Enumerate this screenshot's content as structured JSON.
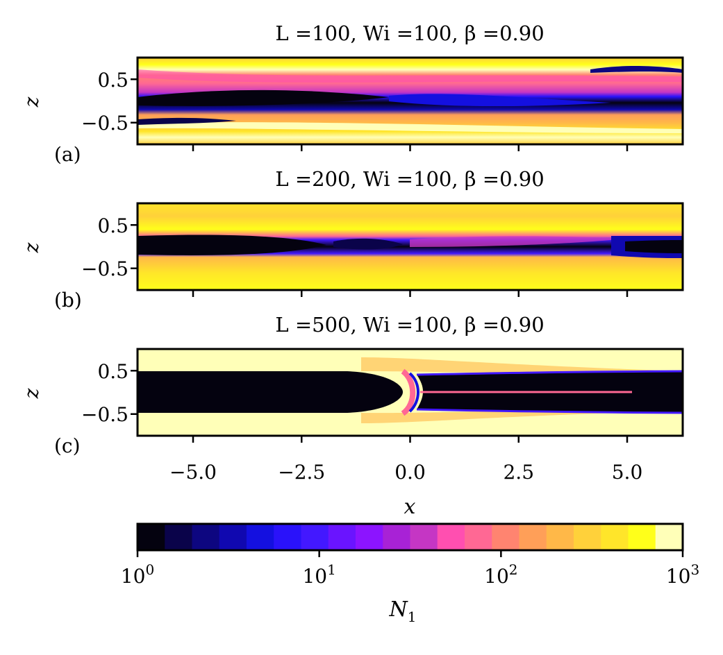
{
  "chart_data": [
    {
      "type": "heatmap",
      "panel_label": "(a)",
      "title": "L =100, Wi =100, β =0.90",
      "xlabel": "",
      "ylabel": "z",
      "xlim": [
        -6.28,
        6.28
      ],
      "ylim": [
        -1.0,
        1.0
      ],
      "x_ticks": [
        -5.0,
        -2.5,
        0.0,
        2.5,
        5.0
      ],
      "y_ticks": [
        0.5,
        -0.5
      ],
      "y_tick_labels": [
        "0.5",
        "−0.5"
      ],
      "bands": [
        {
          "z0": 0.72,
          "z1": 0.95,
          "x0": -6.28,
          "x1": 6.28,
          "value": 800
        },
        {
          "z0": 0.35,
          "z1": 0.72,
          "x0": -6.28,
          "x1": 6.28,
          "value": 120
        },
        {
          "z0": -0.25,
          "z1": 0.35,
          "x0": -6.28,
          "x1": -0.5,
          "value": 5
        },
        {
          "z0": -0.05,
          "z1": 0.15,
          "x0": -5.5,
          "x1": -0.8,
          "value": 1.2
        },
        {
          "z0": -0.2,
          "z1": 0.1,
          "x0": 0.2,
          "x1": 4.5,
          "value": 3
        },
        {
          "z0": -0.6,
          "z1": -0.25,
          "x0": -6.28,
          "x1": 6.28,
          "value": 300
        },
        {
          "z0": -0.95,
          "z1": -0.6,
          "x0": -6.28,
          "x1": 6.28,
          "value": 700
        },
        {
          "z0": 0.55,
          "z1": 0.85,
          "x0": 3.5,
          "x1": 6.28,
          "value": 8
        }
      ]
    },
    {
      "type": "heatmap",
      "panel_label": "(b)",
      "title": "L =200, Wi =100, β =0.90",
      "xlabel": "",
      "ylabel": "z",
      "xlim": [
        -6.28,
        6.28
      ],
      "ylim": [
        -1.0,
        1.0
      ],
      "x_ticks": [
        -5.0,
        -2.5,
        0.0,
        2.5,
        5.0
      ],
      "y_ticks": [
        0.5,
        -0.5
      ],
      "y_tick_labels": [
        "0.5",
        "−0.5"
      ],
      "bands": [
        {
          "z0": 0.25,
          "z1": 1.0,
          "x0": -6.28,
          "x1": 6.28,
          "value": 600
        },
        {
          "z0": -0.25,
          "z1": 0.25,
          "x0": -6.28,
          "x1": -2.0,
          "value": 1.0
        },
        {
          "z0": -0.25,
          "z1": 0.25,
          "x0": -2.0,
          "x1": 0.0,
          "value": 4
        },
        {
          "z0": -0.2,
          "z1": 0.2,
          "x0": 0.0,
          "x1": 4.5,
          "value": 40
        },
        {
          "z0": -0.25,
          "z1": 0.25,
          "x0": 4.5,
          "x1": 6.28,
          "value": 2
        },
        {
          "z0": -1.0,
          "z1": -0.25,
          "x0": -6.28,
          "x1": 6.28,
          "value": 500
        }
      ]
    },
    {
      "type": "heatmap",
      "panel_label": "(c)",
      "title": "L =500, Wi =100, β =0.90",
      "xlabel": "x",
      "ylabel": "z",
      "xlim": [
        -6.28,
        6.28
      ],
      "ylim": [
        -1.0,
        1.0
      ],
      "x_ticks": [
        -5.0,
        -2.5,
        0.0,
        2.5,
        5.0
      ],
      "x_tick_labels": [
        "−5.0",
        "−2.5",
        "0.0",
        "2.5",
        "5.0"
      ],
      "y_ticks": [
        0.5,
        -0.5
      ],
      "y_tick_labels": [
        "0.5",
        "−0.5"
      ],
      "bands": [
        {
          "z0": 0.48,
          "z1": 1.0,
          "x0": -6.28,
          "x1": 6.28,
          "value": 1000
        },
        {
          "z0": -1.0,
          "z1": -0.48,
          "x0": -6.28,
          "x1": 6.28,
          "value": 1000
        },
        {
          "z0": -0.48,
          "z1": 0.48,
          "x0": -6.28,
          "x1": -0.3,
          "value": 1.0
        },
        {
          "z0": -0.48,
          "z1": 0.48,
          "x0": 0.1,
          "x1": 6.28,
          "value": 1.0
        },
        {
          "z0": -0.03,
          "z1": 0.03,
          "x0": 0.3,
          "x1": 5.0,
          "value": 40
        }
      ]
    }
  ],
  "colorbar": {
    "label": "N",
    "label_sub": "1",
    "scale": "log",
    "range": [
      1,
      1000
    ],
    "levels": 20,
    "tick_values": [
      1,
      10,
      100,
      1000
    ],
    "tick_base": [
      "10",
      "10",
      "10",
      "10"
    ],
    "tick_exp": [
      "0",
      "1",
      "2",
      "3"
    ],
    "colors": [
      "#04020f",
      "#0a034a",
      "#0d0680",
      "#1008b0",
      "#1410e0",
      "#2a12fa",
      "#4318ff",
      "#6a14ff",
      "#8c14ff",
      "#a822d6",
      "#c536c4",
      "#ff4fb0",
      "#ff6894",
      "#ff8470",
      "#ff9f58",
      "#ffb848",
      "#ffd13a",
      "#ffe52a",
      "#ffff1a",
      "#ffffb8"
    ]
  }
}
